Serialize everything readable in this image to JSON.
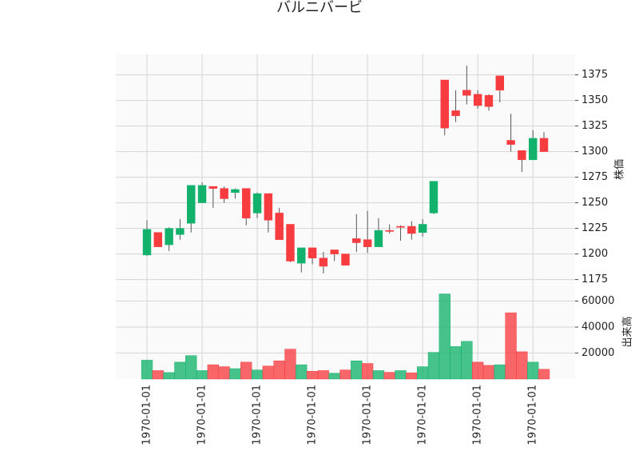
{
  "chart_data": {
    "type": "candlestick",
    "title": "バルニバービ",
    "categories": [
      "1970-01-01",
      null,
      null,
      null,
      null,
      "1970-01-01",
      null,
      null,
      null,
      null,
      "1970-01-01",
      null,
      null,
      null,
      null,
      "1970-01-01",
      null,
      null,
      null,
      null,
      "1970-01-01",
      null,
      null,
      null,
      null,
      "1970-01-01",
      null,
      null,
      null,
      null,
      "1970-01-01",
      null,
      null,
      null,
      null,
      "1970-01-01",
      null
    ],
    "open": [
      1199,
      1221,
      1209,
      1219,
      1230,
      1250,
      1266,
      1264,
      1260,
      1264,
      1240,
      1259,
      1240,
      1229,
      1191,
      1206,
      1196,
      1204,
      1200,
      1215,
      1214,
      1207,
      1223,
      1227,
      1227,
      1221,
      1240,
      1370,
      1340,
      1360,
      1356,
      1355,
      1374,
      1311,
      1301,
      1292,
      1313
    ],
    "high": [
      1233,
      1221,
      1226,
      1234,
      1267,
      1270,
      1266,
      1266,
      1264,
      1264,
      1260,
      1259,
      1245,
      1229,
      1206,
      1206,
      1202,
      1204,
      1200,
      1239,
      1242,
      1235,
      1229,
      1228,
      1232,
      1234,
      1271,
      1370,
      1360,
      1384,
      1360,
      1356,
      1374,
      1337,
      1301,
      1321,
      1319
    ],
    "low": [
      1198,
      1207,
      1203,
      1214,
      1221,
      1250,
      1245,
      1250,
      1254,
      1228,
      1235,
      1221,
      1214,
      1192,
      1182,
      1190,
      1181,
      1193,
      1189,
      1202,
      1201,
      1207,
      1220,
      1213,
      1214,
      1217,
      1239,
      1316,
      1329,
      1346,
      1342,
      1340,
      1348,
      1300,
      1280,
      1292,
      1300
    ],
    "close": [
      1224,
      1207,
      1225,
      1225,
      1267,
      1267,
      1264,
      1254,
      1263,
      1235,
      1259,
      1233,
      1214,
      1193,
      1206,
      1196,
      1188,
      1200,
      1189,
      1211,
      1207,
      1223,
      1222,
      1226,
      1220,
      1229,
      1271,
      1323,
      1335,
      1355,
      1345,
      1344,
      1360,
      1307,
      1292,
      1313,
      1300
    ],
    "volume": [
      14500,
      6500,
      5000,
      13000,
      18000,
      6500,
      11000,
      9500,
      8000,
      13000,
      7000,
      10000,
      14000,
      23000,
      11000,
      6000,
      6500,
      4500,
      7000,
      14000,
      12000,
      6500,
      5200,
      6500,
      4800,
      9500,
      20500,
      65500,
      25000,
      29000,
      13000,
      10500,
      11000,
      51000,
      21000,
      13000,
      7500
    ],
    "ylim": [
      1170,
      1395
    ],
    "yticks": [
      1175,
      1200,
      1225,
      1250,
      1275,
      1300,
      1325,
      1350,
      1375
    ],
    "ylabel": "株価",
    "volume_ylim": [
      0,
      72000
    ],
    "volume_yticks": [
      20000,
      40000,
      60000
    ],
    "volume_ylabel": "出来高",
    "up_color": "#13b26c",
    "down_color": "#f73c40",
    "grid": true
  }
}
